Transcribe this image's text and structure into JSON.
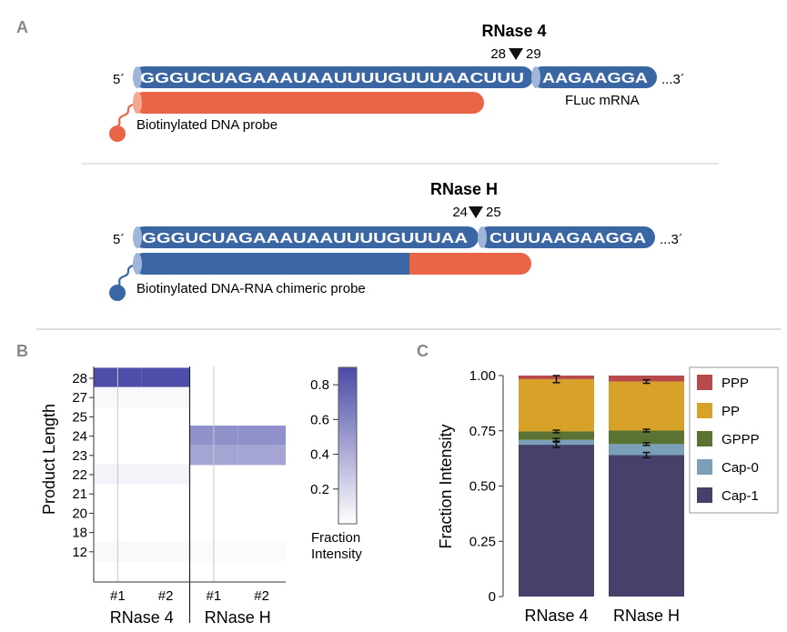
{
  "panel_labels": {
    "a": "A",
    "b": "B",
    "c": "C"
  },
  "panel_a": {
    "top": {
      "enzyme": "RNase 4",
      "cut_left": "28",
      "cut_right": "29",
      "five_prime": "5´",
      "three_prime": "...3´",
      "seq_left": "GGGUCUAGAAAUAAUUUUGUUUAACUUU",
      "seq_right": "AAGAAGGA",
      "mrna_label": "FLuc mRNA",
      "probe_label": "Biotinylated DNA probe"
    },
    "bottom": {
      "enzyme": "RNase H",
      "cut_left": "24",
      "cut_right": "25",
      "five_prime": "5´",
      "three_prime": "...3´",
      "seq_left": "GGGUCUAGAAAUAAUUUUGUUUAA",
      "seq_right": "CUUUAAGAAGGA",
      "probe_label": "Biotinylated DNA-RNA chimeric probe"
    },
    "colors": {
      "rna": "#3a67a4",
      "dna": "#ea6547",
      "divider": "#cccccc"
    }
  },
  "chart_data": [
    {
      "type": "heatmap",
      "panel": "B",
      "ylabel": "Product Length",
      "rows": [
        "28",
        "27",
        "25",
        "24",
        "23",
        "22",
        "21",
        "20",
        "18",
        "12"
      ],
      "columns": [
        "#1",
        "#2",
        "#1",
        "#2"
      ],
      "groups": [
        "RNase 4",
        "RNase H"
      ],
      "values": [
        [
          0.88,
          0.88,
          0.0,
          0.0
        ],
        [
          0.03,
          0.03,
          0.0,
          0.0
        ],
        [
          0.0,
          0.0,
          0.0,
          0.0
        ],
        [
          0.0,
          0.0,
          0.55,
          0.55
        ],
        [
          0.0,
          0.0,
          0.45,
          0.45
        ],
        [
          0.06,
          0.06,
          0.0,
          0.0
        ],
        [
          0.0,
          0.0,
          0.0,
          0.0
        ],
        [
          0.0,
          0.0,
          0.0,
          0.0
        ],
        [
          0.0,
          0.0,
          0.0,
          0.0
        ],
        [
          0.03,
          0.03,
          0.02,
          0.02
        ]
      ],
      "colorbar": {
        "ticks": [
          "0.8",
          "0.6",
          "0.4",
          "0.2"
        ],
        "tick_values": [
          0.8,
          0.6,
          0.4,
          0.2
        ],
        "range": [
          0,
          0.9
        ],
        "label_line1": "Fraction",
        "label_line2": "Intensity",
        "color_low": "#ffffff",
        "color_high": "#4a4aa8"
      }
    },
    {
      "type": "bar",
      "stacked": true,
      "panel": "C",
      "ylabel": "Fraction Intensity",
      "ylim": [
        0,
        1.0
      ],
      "yticks": [
        "0",
        "0.25",
        "0.50",
        "0.75",
        "1.00"
      ],
      "ytick_values": [
        0,
        0.25,
        0.5,
        0.75,
        1.0
      ],
      "categories": [
        "RNase 4",
        "RNase H"
      ],
      "series": [
        {
          "name": "Cap-1",
          "color": "#45416a",
          "values": [
            0.687,
            0.64
          ],
          "errors": [
            0.012,
            0.012
          ]
        },
        {
          "name": "Cap-0",
          "color": "#7b9fb9",
          "values": [
            0.022,
            0.05
          ],
          "errors": [
            0.006,
            0.006
          ]
        },
        {
          "name": "GPPP",
          "color": "#5a7332",
          "values": [
            0.038,
            0.061
          ],
          "errors": [
            0.006,
            0.006
          ]
        },
        {
          "name": "PP",
          "color": "#d8a22a",
          "values": [
            0.237,
            0.222
          ],
          "errors": [
            0.016,
            0.008
          ]
        },
        {
          "name": "PPP",
          "color": "#b84a4c",
          "values": [
            0.016,
            0.027
          ],
          "errors": [
            0.0,
            0.0
          ]
        }
      ],
      "legend_order": [
        "PPP",
        "PP",
        "GPPP",
        "Cap-0",
        "Cap-1"
      ]
    }
  ]
}
